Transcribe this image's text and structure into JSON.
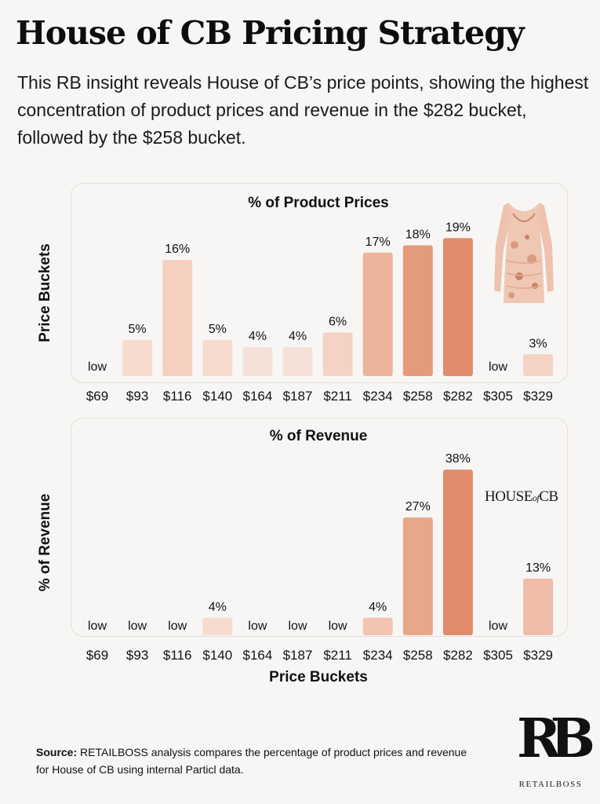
{
  "title": "House of CB Pricing Strategy",
  "subtitle": "This RB insight reveals House of CB’s price points, showing the highest concentration of product prices and revenue in the $282 bucket, followed by the $258 bucket.",
  "chart_data": [
    {
      "type": "bar",
      "title": "% of Product Prices",
      "ylabel": "Price Buckets",
      "xlabel": "",
      "categories": [
        "$69",
        "$93",
        "$116",
        "$140",
        "$164",
        "$187",
        "$211",
        "$234",
        "$258",
        "$282",
        "$305",
        "$329"
      ],
      "values": [
        null,
        5,
        16,
        5,
        4,
        4,
        6,
        17,
        18,
        19,
        null,
        3
      ],
      "labels": [
        "low",
        "5%",
        "16%",
        "5%",
        "4%",
        "4%",
        "6%",
        "17%",
        "18%",
        "19%",
        "low",
        "3%"
      ],
      "colors": [
        "#f6e1d8",
        "#f6dccf",
        "#f6d0bf",
        "#f6dccf",
        "#f6e1d8",
        "#f6e1d8",
        "#f4d3c4",
        "#ecb49c",
        "#e39b7c",
        "#e08c6c",
        "#f6e1d8",
        "#f4d3c4"
      ],
      "ylim": [
        0,
        20
      ],
      "grid": false,
      "legend": "none"
    },
    {
      "type": "bar",
      "title": "% of Revenue",
      "ylabel": "% of Revenue",
      "xlabel": "Price Buckets",
      "categories": [
        "$69",
        "$93",
        "$116",
        "$140",
        "$164",
        "$187",
        "$211",
        "$234",
        "$258",
        "$282",
        "$305",
        "$329"
      ],
      "values": [
        null,
        null,
        null,
        4,
        null,
        null,
        null,
        4,
        27,
        38,
        null,
        13
      ],
      "labels": [
        "low",
        "low",
        "low",
        "4%",
        "low",
        "low",
        "low",
        "4%",
        "27%",
        "38%",
        "low",
        "13%"
      ],
      "colors": [
        "#f6e1d8",
        "#f6e1d8",
        "#f6e1d8",
        "#f6dccf",
        "#f6e1d8",
        "#f6e1d8",
        "#f6e1d8",
        "#f1c5b2",
        "#e8a78a",
        "#e08c6c",
        "#f6e1d8",
        "#efbda7"
      ],
      "ylim": [
        0,
        40
      ],
      "grid": false,
      "legend": "none"
    }
  ],
  "source": {
    "prefix": "Source:",
    "text": " RETAILBOSS analysis compares the percentage of product prices and revenue for House of CB using internal Particl data."
  },
  "brand_logo_text": "HOUSE of CB",
  "brand_logo": {
    "part1": "HOUSE",
    "part2": "of",
    "part3": "CB"
  },
  "rb_logo": {
    "mark": "RB",
    "name": "RETAILBOSS"
  }
}
